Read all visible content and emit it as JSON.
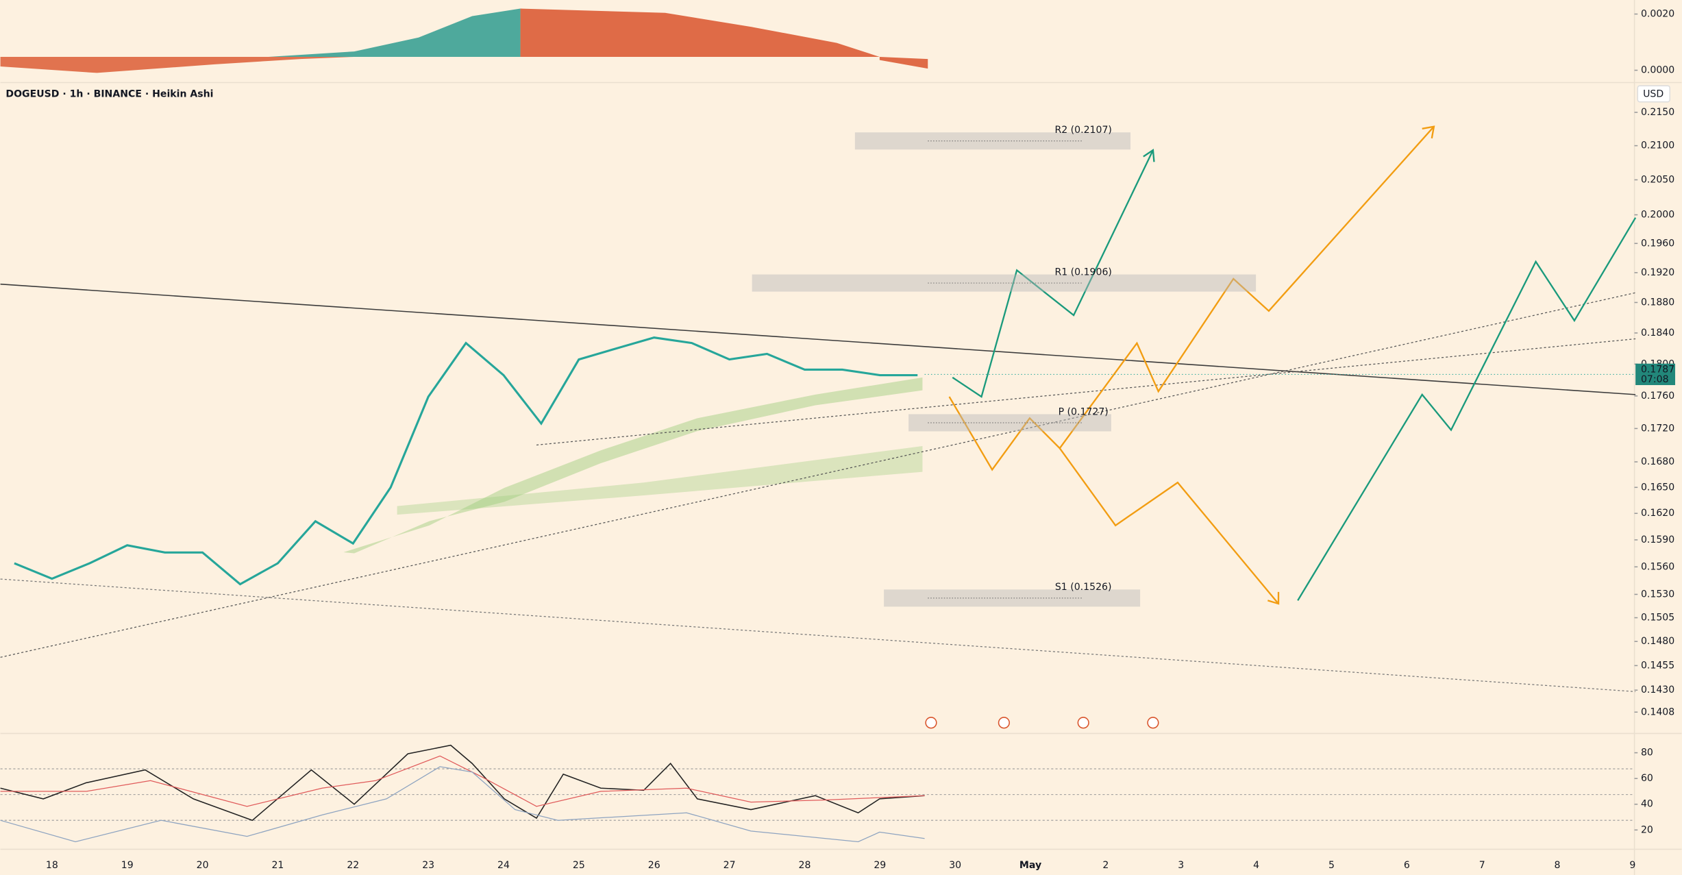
{
  "header": {
    "symbol": "DOGEUSD · 1h · BINANCE · Heikin Ashi",
    "currency": "USD"
  },
  "chart_data": {
    "type": "line",
    "log": true,
    "grid": false,
    "color": "#26a69a",
    "categories": [
      null,
      "18",
      null,
      "19",
      null,
      "20",
      null,
      "21",
      null,
      "22",
      null,
      "23",
      null,
      "24",
      null,
      "25",
      null,
      "26",
      null,
      "27",
      null,
      "28",
      null,
      "29",
      null,
      "30",
      null,
      "May",
      null,
      "2",
      null,
      "3",
      null,
      "4",
      null,
      "5",
      null,
      "6",
      null,
      "7",
      null,
      "8",
      null,
      "9"
    ],
    "values": [
      0.1564,
      0.1547,
      0.1564,
      0.1584,
      0.1576,
      0.1576,
      0.1541,
      0.1564,
      0.1611,
      0.1586,
      0.165,
      0.1759,
      0.1827,
      0.1786,
      0.1726,
      0.1806,
      0.182,
      0.1834,
      0.1827,
      0.1806,
      0.1813,
      0.1793,
      0.1793,
      0.1786,
      0.1786,
      null,
      null,
      null,
      null,
      null,
      null,
      null,
      null,
      null,
      null,
      null,
      null,
      null,
      null,
      null,
      null,
      null,
      null,
      null
    ],
    "ylim": [
      0.1388,
      0.2194
    ],
    "yticks": [
      {
        "value": 0.215,
        "label": "0.2150"
      },
      {
        "value": 0.21,
        "label": "0.2100"
      },
      {
        "value": 0.205,
        "label": "0.2050"
      },
      {
        "value": 0.2,
        "label": "0.2000"
      },
      {
        "value": 0.196,
        "label": "0.1960"
      },
      {
        "value": 0.192,
        "label": "0.1920"
      },
      {
        "value": 0.188,
        "label": "0.1880"
      },
      {
        "value": 0.184,
        "label": "0.1840"
      },
      {
        "value": 0.18,
        "label": "0.1800"
      },
      {
        "value": 0.176,
        "label": "0.1760"
      },
      {
        "value": 0.172,
        "label": "0.1720"
      },
      {
        "value": 0.168,
        "label": "0.1680"
      },
      {
        "value": 0.165,
        "label": "0.1650"
      },
      {
        "value": 0.162,
        "label": "0.1620"
      },
      {
        "value": 0.159,
        "label": "0.1590"
      },
      {
        "value": 0.156,
        "label": "0.1560"
      },
      {
        "value": 0.153,
        "label": "0.1530"
      },
      0.1505,
      {
        "value": 0.148,
        "label": "0.1480"
      },
      0.1455,
      {
        "value": 0.143,
        "label": "0.1430"
      },
      0.1408
    ],
    "pivots": [
      {
        "label": "R2 (0.2107)",
        "value": 0.2107
      },
      {
        "label": "R1 (0.1906)",
        "value": 0.1906
      },
      {
        "label": "P (0.1727)",
        "value": 0.1727
      },
      {
        "label": "S1 (0.1526)",
        "value": 0.1526
      }
    ],
    "last_price": 0.1787,
    "countdown": "07:08"
  },
  "macd": {
    "ylim": [
      -0.0004,
      0.0025
    ],
    "yticks": [
      {
        "value": 0.002,
        "label": "0.0020"
      },
      {
        "value": 0,
        "label": "0.0000"
      }
    ]
  },
  "rsi": {
    "ylim": [
      5,
      95
    ],
    "yticks": [
      80,
      60,
      40,
      20
    ]
  }
}
